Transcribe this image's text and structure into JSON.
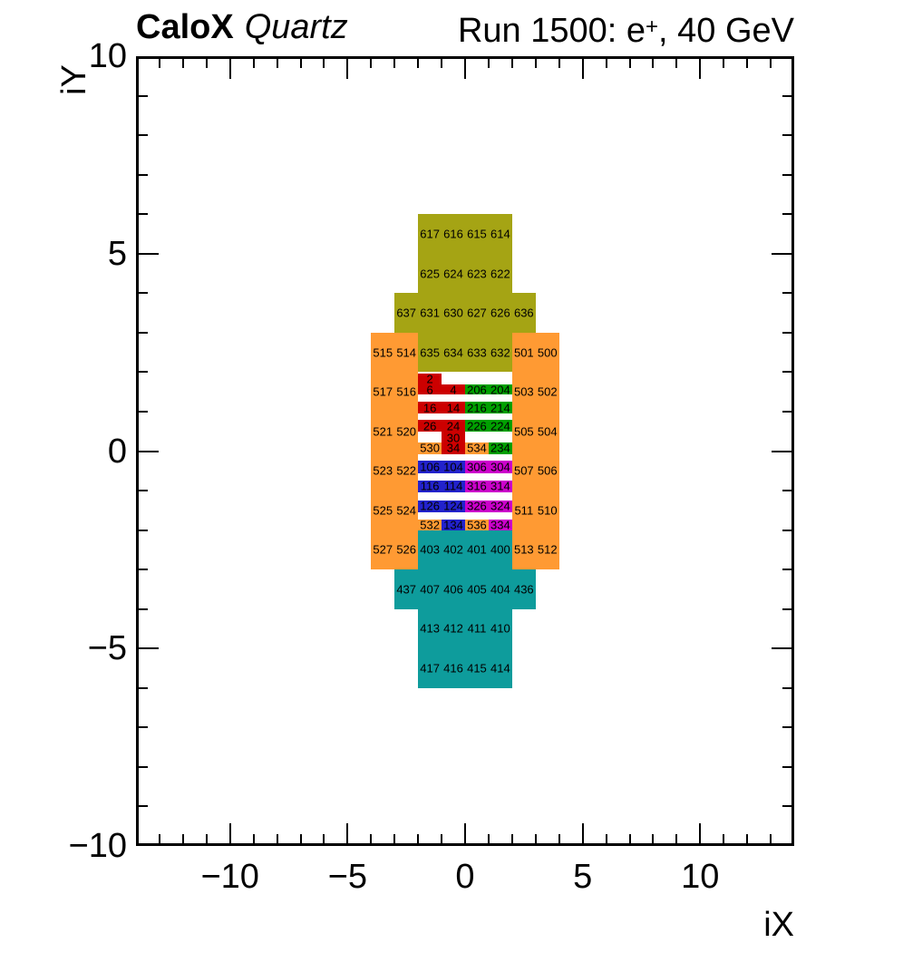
{
  "header": {
    "title_bold": "CaloX",
    "title_italic": "Quartz",
    "run_prefix": "Run 1500: e",
    "run_sup": "+",
    "run_suffix": ", 40 GeV"
  },
  "chart_data": {
    "type": "heatmap",
    "title": "CaloX Quartz",
    "subtitle": "Run 1500: e+, 40 GeV",
    "xlabel": "iX",
    "ylabel": "iY",
    "xlim": [
      -14,
      14
    ],
    "ylim": [
      -10,
      10
    ],
    "grid": false,
    "x_ticks": [
      {
        "v": -10,
        "label": "−10"
      },
      {
        "v": -5,
        "label": "−5"
      },
      {
        "v": 0,
        "label": "0"
      },
      {
        "v": 5,
        "label": "5"
      },
      {
        "v": 10,
        "label": "10"
      }
    ],
    "y_ticks": [
      {
        "v": 10,
        "label": "10"
      },
      {
        "v": 5,
        "label": "5"
      },
      {
        "v": 0,
        "label": "0"
      },
      {
        "v": -5,
        "label": "−5"
      },
      {
        "v": -10,
        "label": "−10"
      }
    ],
    "colors": {
      "olive": "#a5a414",
      "orange": "#ff9a33",
      "teal": "#0e9c9c",
      "red": "#cc0000",
      "green": "#00a000",
      "blue": "#2222cc",
      "magenta": "#cc00cc"
    },
    "boxes": [
      {
        "c": "olive",
        "x1": -2,
        "x2": 2,
        "y1": 4,
        "y2": 6
      },
      {
        "c": "olive",
        "x1": -3,
        "x2": 3,
        "y1": 3,
        "y2": 4
      },
      {
        "c": "olive",
        "x1": -2,
        "x2": 2,
        "y1": 2,
        "y2": 3
      },
      {
        "c": "orange",
        "x1": -4,
        "x2": -2,
        "y1": -3,
        "y2": 3
      },
      {
        "c": "orange",
        "x1": 2,
        "x2": 4,
        "y1": -3,
        "y2": 3
      },
      {
        "c": "orange",
        "x1": -2,
        "x2": -1,
        "y1": -0.08,
        "y2": 0.22
      },
      {
        "c": "orange",
        "x1": 0,
        "x2": 1,
        "y1": -0.08,
        "y2": 0.22
      },
      {
        "c": "orange",
        "x1": -2,
        "x2": -1,
        "y1": -2.0,
        "y2": -1.73
      },
      {
        "c": "orange",
        "x1": 0,
        "x2": 1,
        "y1": -2.0,
        "y2": -1.73
      },
      {
        "c": "teal",
        "x1": -2,
        "x2": 2,
        "y1": -3,
        "y2": -2
      },
      {
        "c": "teal",
        "x1": -3,
        "x2": 3,
        "y1": -4,
        "y2": -3
      },
      {
        "c": "teal",
        "x1": -2,
        "x2": 2,
        "y1": -6,
        "y2": -4
      },
      {
        "c": "red",
        "x1": -2,
        "x2": -1,
        "y1": 1.69,
        "y2": 1.96
      },
      {
        "c": "red",
        "x1": -2,
        "x2": 0,
        "y1": 1.435,
        "y2": 1.69
      },
      {
        "c": "red",
        "x1": -2,
        "x2": 0,
        "y1": 0.95,
        "y2": 1.25
      },
      {
        "c": "red",
        "x1": -2,
        "x2": 0,
        "y1": 0.49,
        "y2": 0.79
      },
      {
        "c": "red",
        "x1": -1,
        "x2": 0,
        "y1": -0.08,
        "y2": 0.49
      },
      {
        "c": "green",
        "x1": 0,
        "x2": 2,
        "y1": 1.435,
        "y2": 1.69
      },
      {
        "c": "green",
        "x1": 0,
        "x2": 2,
        "y1": 0.95,
        "y2": 1.25
      },
      {
        "c": "green",
        "x1": 0,
        "x2": 2,
        "y1": 0.49,
        "y2": 0.79
      },
      {
        "c": "green",
        "x1": 1,
        "x2": 2,
        "y1": -0.08,
        "y2": 0.22
      },
      {
        "c": "blue",
        "x1": -2,
        "x2": 0,
        "y1": -0.56,
        "y2": -0.24
      },
      {
        "c": "blue",
        "x1": -2,
        "x2": 0,
        "y1": -1.04,
        "y2": -0.75
      },
      {
        "c": "blue",
        "x1": -2,
        "x2": 0,
        "y1": -1.55,
        "y2": -1.25
      },
      {
        "c": "blue",
        "x1": -1,
        "x2": 0,
        "y1": -2.0,
        "y2": -1.73
      },
      {
        "c": "magenta",
        "x1": 0,
        "x2": 2,
        "y1": -0.56,
        "y2": -0.24
      },
      {
        "c": "magenta",
        "x1": 0,
        "x2": 2,
        "y1": -1.04,
        "y2": -0.75
      },
      {
        "c": "magenta",
        "x1": 0,
        "x2": 2,
        "y1": -1.55,
        "y2": -1.25
      },
      {
        "c": "magenta",
        "x1": 1,
        "x2": 2,
        "y1": -2.0,
        "y2": -1.73
      }
    ],
    "labels": [
      [
        "617",
        -1.5,
        5.5
      ],
      [
        "616",
        -0.5,
        5.5
      ],
      [
        "615",
        0.5,
        5.5
      ],
      [
        "614",
        1.5,
        5.5
      ],
      [
        "625",
        -1.5,
        4.5
      ],
      [
        "624",
        -0.5,
        4.5
      ],
      [
        "623",
        0.5,
        4.5
      ],
      [
        "622",
        1.5,
        4.5
      ],
      [
        "637",
        -2.5,
        3.5
      ],
      [
        "631",
        -1.5,
        3.5
      ],
      [
        "630",
        -0.5,
        3.5
      ],
      [
        "627",
        0.5,
        3.5
      ],
      [
        "626",
        1.5,
        3.5
      ],
      [
        "636",
        2.5,
        3.5
      ],
      [
        "515",
        -3.5,
        2.5
      ],
      [
        "514",
        -2.5,
        2.5
      ],
      [
        "635",
        -1.5,
        2.5
      ],
      [
        "634",
        -0.5,
        2.5
      ],
      [
        "633",
        0.5,
        2.5
      ],
      [
        "632",
        1.5,
        2.5
      ],
      [
        "501",
        2.5,
        2.5
      ],
      [
        "500",
        3.5,
        2.5
      ],
      [
        "2",
        -1.5,
        1.83
      ],
      [
        "6",
        -1.5,
        1.56
      ],
      [
        "4",
        -0.5,
        1.56
      ],
      [
        "206",
        0.5,
        1.56
      ],
      [
        "204",
        1.5,
        1.56
      ],
      [
        "517",
        -3.5,
        1.5
      ],
      [
        "516",
        -2.5,
        1.5
      ],
      [
        "503",
        2.5,
        1.5
      ],
      [
        "502",
        3.5,
        1.5
      ],
      [
        "16",
        -1.5,
        1.1
      ],
      [
        "14",
        -0.5,
        1.1
      ],
      [
        "216",
        0.5,
        1.1
      ],
      [
        "214",
        1.5,
        1.1
      ],
      [
        "26",
        -1.5,
        0.64
      ],
      [
        "24",
        -0.5,
        0.64
      ],
      [
        "226",
        0.5,
        0.64
      ],
      [
        "224",
        1.5,
        0.64
      ],
      [
        "521",
        -3.5,
        0.5
      ],
      [
        "520",
        -2.5,
        0.5
      ],
      [
        "505",
        2.5,
        0.5
      ],
      [
        "504",
        3.5,
        0.5
      ],
      [
        "30",
        -0.5,
        0.33
      ],
      [
        "530",
        -1.5,
        0.07
      ],
      [
        "34",
        -0.5,
        0.07
      ],
      [
        "534",
        0.5,
        0.07
      ],
      [
        "234",
        1.5,
        0.07
      ],
      [
        "106",
        -1.5,
        -0.4
      ],
      [
        "104",
        -0.5,
        -0.4
      ],
      [
        "306",
        0.5,
        -0.4
      ],
      [
        "304",
        1.5,
        -0.4
      ],
      [
        "523",
        -3.5,
        -0.5
      ],
      [
        "522",
        -2.5,
        -0.5
      ],
      [
        "507",
        2.5,
        -0.5
      ],
      [
        "506",
        3.5,
        -0.5
      ],
      [
        "116",
        -1.5,
        -0.895
      ],
      [
        "114",
        -0.5,
        -0.895
      ],
      [
        "316",
        0.5,
        -0.895
      ],
      [
        "314",
        1.5,
        -0.895
      ],
      [
        "126",
        -1.5,
        -1.4
      ],
      [
        "124",
        -0.5,
        -1.4
      ],
      [
        "326",
        0.5,
        -1.4
      ],
      [
        "324",
        1.5,
        -1.4
      ],
      [
        "525",
        -3.5,
        -1.5
      ],
      [
        "524",
        -2.5,
        -1.5
      ],
      [
        "511",
        2.5,
        -1.5
      ],
      [
        "510",
        3.5,
        -1.5
      ],
      [
        "532",
        -1.5,
        -1.87
      ],
      [
        "134",
        -0.5,
        -1.87
      ],
      [
        "536",
        0.5,
        -1.87
      ],
      [
        "334",
        1.5,
        -1.87
      ],
      [
        "527",
        -3.5,
        -2.5
      ],
      [
        "526",
        -2.5,
        -2.5
      ],
      [
        "403",
        -1.5,
        -2.5
      ],
      [
        "402",
        -0.5,
        -2.5
      ],
      [
        "401",
        0.5,
        -2.5
      ],
      [
        "400",
        1.5,
        -2.5
      ],
      [
        "513",
        2.5,
        -2.5
      ],
      [
        "512",
        3.5,
        -2.5
      ],
      [
        "437",
        -2.5,
        -3.5
      ],
      [
        "407",
        -1.5,
        -3.5
      ],
      [
        "406",
        -0.5,
        -3.5
      ],
      [
        "405",
        0.5,
        -3.5
      ],
      [
        "404",
        1.5,
        -3.5
      ],
      [
        "436",
        2.5,
        -3.5
      ],
      [
        "413",
        -1.5,
        -4.5
      ],
      [
        "412",
        -0.5,
        -4.5
      ],
      [
        "411",
        0.5,
        -4.5
      ],
      [
        "410",
        1.5,
        -4.5
      ],
      [
        "417",
        -1.5,
        -5.5
      ],
      [
        "416",
        -0.5,
        -5.5
      ],
      [
        "415",
        0.5,
        -5.5
      ],
      [
        "414",
        1.5,
        -5.5
      ]
    ]
  }
}
